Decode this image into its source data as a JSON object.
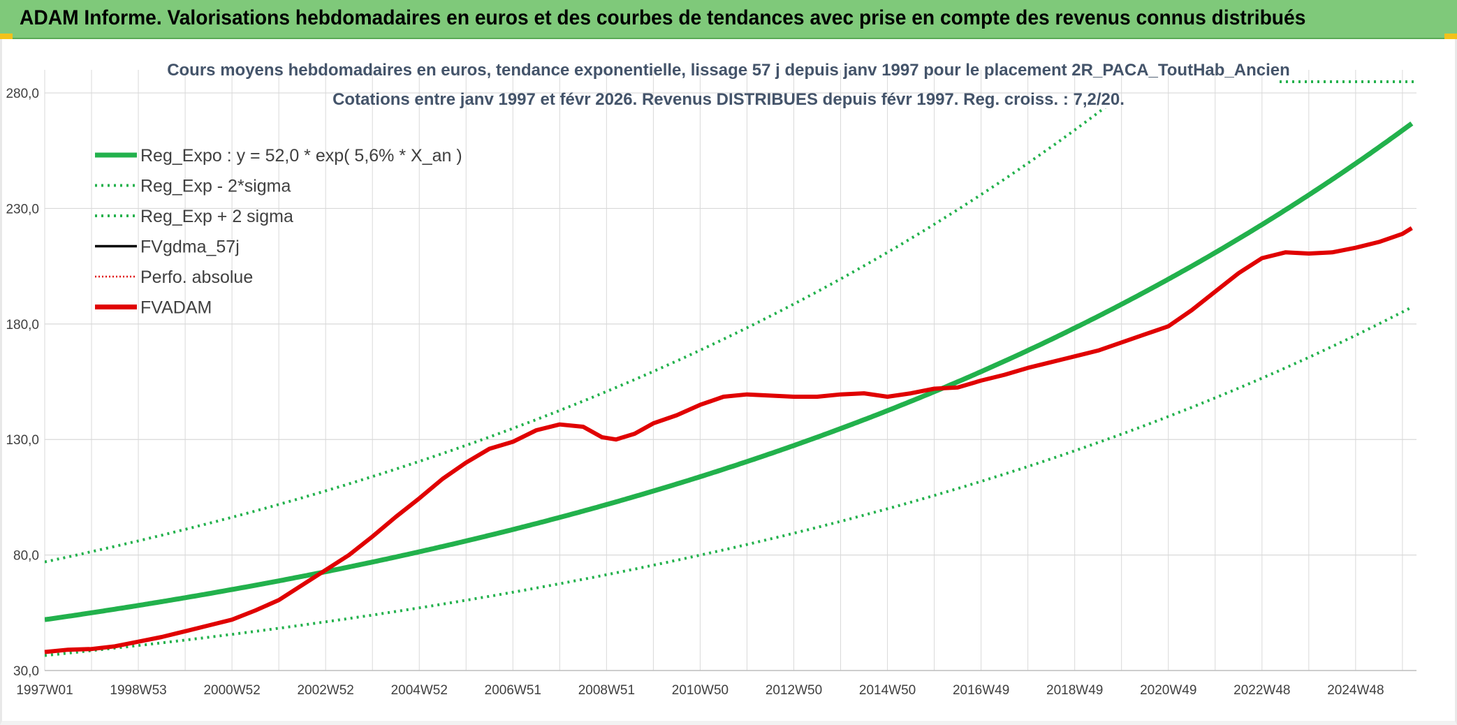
{
  "banner": {
    "title": "ADAM Informe. Valorisations hebdomadaires en euros et des courbes de tendances avec prise en compte des revenus connus distribués"
  },
  "colors": {
    "banner": "#7fc97a",
    "reg_expo": "#22b14c",
    "sigma": "#22b14c",
    "fvgdma": "#000000",
    "perfo": "#e00000",
    "fvadam": "#e00000",
    "grid": "#d9d9d9"
  },
  "chart_data": {
    "type": "line",
    "title_line1": "Cours moyens hebdomadaires en euros, tendance exponentielle, lissage 57 j depuis janv 1997 pour le placement 2R_PACA_ToutHab_Ancien",
    "title_line2": "Cotations entre janv 1997 et févr 2026. Revenus DISTRIBUES depuis févr 1997. Reg. croiss. : 7,2/20.",
    "ylim": [
      30,
      290
    ],
    "xlim": [
      1997.0,
      2026.3
    ],
    "y_ticks": [
      "30,0",
      "80,0",
      "130,0",
      "180,0",
      "230,0",
      "280,0"
    ],
    "y_tick_values": [
      30,
      80,
      130,
      180,
      230,
      280
    ],
    "x_ticks": [
      "1997W01",
      "1998W53",
      "2000W52",
      "2002W52",
      "2004W52",
      "2006W51",
      "2008W51",
      "2010W50",
      "2012W50",
      "2014W50",
      "2016W49",
      "2018W49",
      "2020W49",
      "2022W48",
      "2024W48"
    ],
    "x_tick_values": [
      1997.0,
      1999.0,
      2001.0,
      2003.0,
      2005.0,
      2007.0,
      2009.0,
      2011.0,
      2013.0,
      2015.0,
      2017.0,
      2019.0,
      2021.0,
      2023.0,
      2025.0
    ],
    "legend": [
      {
        "label": "Reg_Expo : y = 52,0 * exp( 5,6% *  X_an )",
        "style": "solid-thick",
        "color": "#22b14c"
      },
      {
        "label": "Reg_Exp - 2*sigma",
        "style": "dotted",
        "color": "#22b14c"
      },
      {
        "label": "Reg_Exp + 2 sigma",
        "style": "dotted",
        "color": "#22b14c"
      },
      {
        "label": "FVgdma_57j",
        "style": "solid",
        "color": "#000000"
      },
      {
        "label": "Perfo. absolue",
        "style": "dotted-thin",
        "color": "#e00000"
      },
      {
        "label": "FVADAM",
        "style": "solid-thick",
        "color": "#e00000"
      }
    ],
    "series": [
      {
        "name": "Reg_Expo : y = 52,0 * exp( 5,6% *  X_an )",
        "type": "exp",
        "a": 52.0,
        "b": 0.056
      },
      {
        "name": "Reg_Exp - 2*sigma",
        "type": "exp",
        "a": 36.5,
        "b": 0.056
      },
      {
        "name": "Reg_Exp + 2 sigma",
        "type": "exp",
        "a": 77.0,
        "b": 0.056
      },
      {
        "name": "FVADAM",
        "x": [
          1997.0,
          1997.5,
          1998.0,
          1998.5,
          1999.0,
          1999.5,
          2000.0,
          2000.5,
          2001.0,
          2001.5,
          2002.0,
          2002.5,
          2003.0,
          2003.5,
          2004.0,
          2004.5,
          2005.0,
          2005.5,
          2006.0,
          2006.5,
          2007.0,
          2007.5,
          2008.0,
          2008.5,
          2008.9,
          2009.2,
          2009.6,
          2010.0,
          2010.5,
          2011.0,
          2011.5,
          2012.0,
          2012.5,
          2013.0,
          2013.5,
          2014.0,
          2014.5,
          2015.0,
          2015.5,
          2016.0,
          2016.5,
          2017.0,
          2017.5,
          2018.0,
          2018.5,
          2019.0,
          2019.5,
          2020.0,
          2020.5,
          2021.0,
          2021.5,
          2022.0,
          2022.5,
          2023.0,
          2023.5,
          2024.0,
          2024.5,
          2025.0,
          2025.5,
          2026.0,
          2026.2
        ],
        "y": [
          38.0,
          39.0,
          39.3,
          40.5,
          42.5,
          44.5,
          47.0,
          49.5,
          52.0,
          56.0,
          60.5,
          67.0,
          73.5,
          80.0,
          88.0,
          96.5,
          104.5,
          113.0,
          120.0,
          126.0,
          129.0,
          134.0,
          136.5,
          135.5,
          131.0,
          130.0,
          132.5,
          137.0,
          140.5,
          145.0,
          148.5,
          149.5,
          149.0,
          148.5,
          148.5,
          149.5,
          150.0,
          148.5,
          150.0,
          152.0,
          152.5,
          155.5,
          158.0,
          161.0,
          163.5,
          166.0,
          168.5,
          172.0,
          175.5,
          179.0,
          186.0,
          194.0,
          202.0,
          208.5,
          211.0,
          210.5,
          211.0,
          213.0,
          215.5,
          219.0,
          221.5
        ]
      }
    ]
  }
}
